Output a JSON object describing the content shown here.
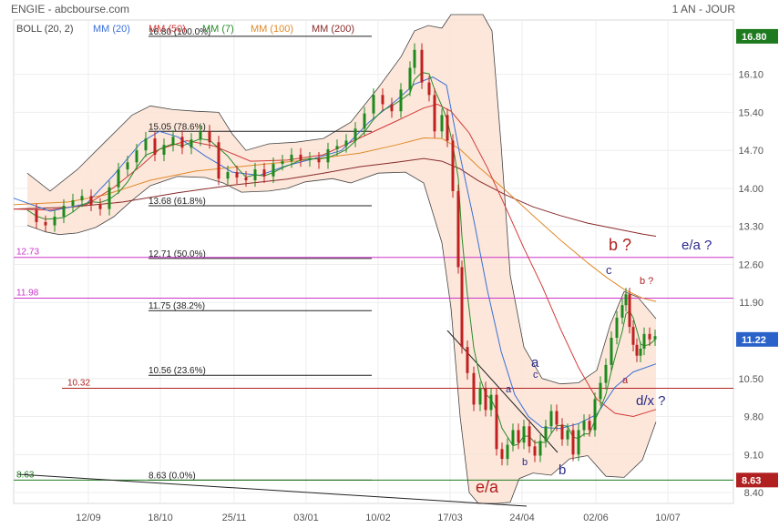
{
  "header": {
    "title": "ENGIE - abcbourse.com",
    "period": "1 AN - JOUR"
  },
  "legend": [
    {
      "label": "BOLL (20, 2)",
      "color": "#444444"
    },
    {
      "label": "MM (20)",
      "color": "#3a6fd8"
    },
    {
      "label": "MM (50)",
      "color": "#d23a3a"
    },
    {
      "label": "MM (7)",
      "color": "#2a8a2a"
    },
    {
      "label": "MM (100)",
      "color": "#e08a2a"
    },
    {
      "label": "MM (200)",
      "color": "#8a2a2a"
    }
  ],
  "chart_data": {
    "type": "line",
    "title": "ENGIE - abcbourse.com",
    "period": "1 AN - JOUR",
    "x_ticks": [
      "12/09",
      "18/10",
      "25/11",
      "03/01",
      "10/02",
      "17/03",
      "24/04",
      "02/06",
      "10/07"
    ],
    "y_ticks": [
      16.1,
      15.4,
      14.7,
      14.0,
      13.3,
      12.6,
      11.9,
      10.5,
      9.8,
      9.1,
      8.4
    ],
    "y_tick_labels": [
      "16.10",
      "15.40",
      "14.70",
      "14.00",
      "13.30",
      "12.60",
      "11.90",
      "10.50",
      "9.80",
      "9.10",
      "8.40"
    ],
    "ylim": [
      8.2,
      17.1
    ],
    "price_badges": [
      {
        "label": "16.80",
        "value": 16.8,
        "color": "#1e7a1e"
      },
      {
        "label": "11.22",
        "value": 11.22,
        "color": "#2a62c9"
      },
      {
        "label": "8.63",
        "value": 8.63,
        "color": "#b02020"
      }
    ],
    "fibonacci": [
      {
        "label": "16.80 (100.0%)",
        "value": 16.8
      },
      {
        "label": "15.05 (78.6%)",
        "value": 15.05
      },
      {
        "label": "13.68 (61.8%)",
        "value": 13.68
      },
      {
        "label": "12.71 (50.0%)",
        "value": 12.71
      },
      {
        "label": "11.75 (38.2%)",
        "value": 11.75
      },
      {
        "label": "10.56 (23.6%)",
        "value": 10.56
      },
      {
        "label": "8.63 (0.0%)",
        "value": 8.63
      }
    ],
    "horizontal_lines": [
      {
        "label": "12.73",
        "value": 12.73,
        "color": "#cc33cc"
      },
      {
        "label": "11.98",
        "value": 11.98,
        "color": "#cc33cc"
      },
      {
        "label": "10.32",
        "value": 10.32,
        "color": "#b02020"
      },
      {
        "label": "8.63",
        "value": 8.63,
        "color": "#1e7a1e"
      }
    ],
    "annotations": [
      {
        "text": "b ?",
        "color": "#b02020",
        "size": "large"
      },
      {
        "text": "e/a ?",
        "color": "#2a2a8a",
        "size": "medium"
      },
      {
        "text": "c",
        "color": "#2a2a8a",
        "size": "small"
      },
      {
        "text": "b ?",
        "color": "#b02020",
        "size": "tiny"
      },
      {
        "text": "a",
        "color": "#2a2a8a",
        "size": "medium"
      },
      {
        "text": "c",
        "color": "#2a2a8a",
        "size": "tiny"
      },
      {
        "text": "a",
        "color": "#2a2a8a",
        "size": "tiny"
      },
      {
        "text": "a",
        "color": "#b02020",
        "size": "tiny"
      },
      {
        "text": "d/x ?",
        "color": "#2a2a8a",
        "size": "medium"
      },
      {
        "text": "b",
        "color": "#2a2a8a",
        "size": "tiny"
      },
      {
        "text": "b",
        "color": "#2a2a8a",
        "size": "medium"
      },
      {
        "text": "e/a",
        "color": "#b02020",
        "size": "large"
      }
    ],
    "series": [
      {
        "name": "MM (200)",
        "color": "#8a2a2a",
        "points": [
          [
            0,
            13.62
          ],
          [
            60,
            13.65
          ],
          [
            120,
            13.75
          ],
          [
            180,
            13.92
          ],
          [
            240,
            14.06
          ],
          [
            300,
            14.17
          ],
          [
            340,
            14.28
          ],
          [
            380,
            14.4
          ],
          [
            420,
            14.48
          ],
          [
            450,
            14.55
          ],
          [
            470,
            14.5
          ],
          [
            490,
            14.36
          ],
          [
            510,
            14.14
          ],
          [
            540,
            13.88
          ],
          [
            570,
            13.66
          ],
          [
            600,
            13.5
          ],
          [
            630,
            13.36
          ],
          [
            660,
            13.26
          ],
          [
            690,
            13.16
          ],
          [
            705,
            13.12
          ]
        ]
      },
      {
        "name": "MM (100)",
        "color": "#e08a2a",
        "points": [
          [
            0,
            13.7
          ],
          [
            60,
            13.75
          ],
          [
            100,
            13.88
          ],
          [
            150,
            14.15
          ],
          [
            200,
            14.32
          ],
          [
            260,
            14.42
          ],
          [
            320,
            14.52
          ],
          [
            380,
            14.65
          ],
          [
            420,
            14.8
          ],
          [
            450,
            14.93
          ],
          [
            470,
            14.92
          ],
          [
            490,
            14.72
          ],
          [
            510,
            14.4
          ],
          [
            540,
            13.96
          ],
          [
            570,
            13.5
          ],
          [
            600,
            13.05
          ],
          [
            630,
            12.63
          ],
          [
            650,
            12.37
          ],
          [
            670,
            12.14
          ],
          [
            690,
            11.98
          ],
          [
            705,
            11.92
          ]
        ]
      },
      {
        "name": "MM (50)",
        "color": "#d23a3a",
        "points": [
          [
            0,
            13.62
          ],
          [
            40,
            13.6
          ],
          [
            80,
            13.7
          ],
          [
            110,
            14.02
          ],
          [
            140,
            14.42
          ],
          [
            160,
            14.72
          ],
          [
            190,
            14.88
          ],
          [
            220,
            14.78
          ],
          [
            260,
            14.5
          ],
          [
            300,
            14.52
          ],
          [
            340,
            14.62
          ],
          [
            380,
            14.93
          ],
          [
            420,
            15.24
          ],
          [
            450,
            15.48
          ],
          [
            465,
            15.55
          ],
          [
            480,
            15.42
          ],
          [
            500,
            15.02
          ],
          [
            520,
            14.38
          ],
          [
            540,
            13.65
          ],
          [
            560,
            12.9
          ],
          [
            580,
            12.2
          ],
          [
            600,
            11.42
          ],
          [
            620,
            10.7
          ],
          [
            640,
            10.12
          ],
          [
            660,
            9.86
          ],
          [
            680,
            9.8
          ],
          [
            705,
            9.93
          ]
        ]
      },
      {
        "name": "MM (20)",
        "color": "#3a6fd8",
        "points": [
          [
            0,
            13.82
          ],
          [
            40,
            13.58
          ],
          [
            80,
            13.72
          ],
          [
            110,
            14.25
          ],
          [
            140,
            14.85
          ],
          [
            160,
            15.05
          ],
          [
            180,
            14.95
          ],
          [
            210,
            14.6
          ],
          [
            240,
            14.3
          ],
          [
            270,
            14.24
          ],
          [
            300,
            14.42
          ],
          [
            330,
            14.55
          ],
          [
            360,
            14.7
          ],
          [
            390,
            15.22
          ],
          [
            420,
            15.62
          ],
          [
            440,
            15.92
          ],
          [
            460,
            16.05
          ],
          [
            475,
            15.9
          ],
          [
            490,
            14.6
          ],
          [
            505,
            13.42
          ],
          [
            520,
            12.12
          ],
          [
            535,
            11.0
          ],
          [
            550,
            10.2
          ],
          [
            565,
            9.8
          ],
          [
            580,
            9.6
          ],
          [
            600,
            9.58
          ],
          [
            620,
            9.67
          ],
          [
            640,
            9.84
          ],
          [
            660,
            10.34
          ],
          [
            680,
            10.62
          ],
          [
            705,
            10.77
          ]
        ]
      }
    ],
    "bollinger_upper": [
      [
        15,
        14.28
      ],
      [
        40,
        13.95
      ],
      [
        70,
        14.35
      ],
      [
        100,
        14.85
      ],
      [
        130,
        15.35
      ],
      [
        150,
        15.52
      ],
      [
        175,
        15.45
      ],
      [
        200,
        15.42
      ],
      [
        225,
        15.4
      ],
      [
        240,
        15.0
      ],
      [
        255,
        14.7
      ],
      [
        280,
        14.82
      ],
      [
        310,
        14.85
      ],
      [
        340,
        14.92
      ],
      [
        370,
        15.22
      ],
      [
        400,
        15.85
      ],
      [
        425,
        16.42
      ],
      [
        440,
        16.9
      ],
      [
        455,
        17.0
      ],
      [
        470,
        16.95
      ],
      [
        480,
        17.2
      ],
      [
        500,
        17.2
      ],
      [
        515,
        17.2
      ],
      [
        525,
        16.9
      ],
      [
        535,
        14.8
      ],
      [
        545,
        12.4
      ],
      [
        560,
        11.08
      ],
      [
        580,
        10.5
      ],
      [
        600,
        10.4
      ],
      [
        620,
        10.42
      ],
      [
        640,
        10.65
      ],
      [
        655,
        11.5
      ],
      [
        670,
        12.1
      ],
      [
        685,
        12.0
      ],
      [
        705,
        11.6
      ]
    ],
    "bollinger_lower": [
      [
        705,
        9.7
      ],
      [
        690,
        9.0
      ],
      [
        670,
        8.68
      ],
      [
        650,
        8.7
      ],
      [
        630,
        9.08
      ],
      [
        610,
        9.02
      ],
      [
        590,
        8.72
      ],
      [
        570,
        8.76
      ],
      [
        555,
        8.66
      ],
      [
        545,
        8.22
      ],
      [
        530,
        8.2
      ],
      [
        510,
        8.2
      ],
      [
        500,
        8.4
      ],
      [
        490,
        9.8
      ],
      [
        480,
        11.8
      ],
      [
        470,
        13.0
      ],
      [
        460,
        13.55
      ],
      [
        450,
        14.1
      ],
      [
        430,
        14.3
      ],
      [
        400,
        14.28
      ],
      [
        370,
        14.1
      ],
      [
        350,
        14.18
      ],
      [
        320,
        14.12
      ],
      [
        300,
        14.0
      ],
      [
        280,
        13.95
      ],
      [
        250,
        13.93
      ],
      [
        230,
        14.1
      ],
      [
        210,
        14.2
      ],
      [
        180,
        14.22
      ],
      [
        150,
        14.05
      ],
      [
        130,
        13.78
      ],
      [
        110,
        13.48
      ],
      [
        90,
        13.28
      ],
      [
        70,
        13.18
      ],
      [
        50,
        13.15
      ],
      [
        35,
        13.2
      ],
      [
        15,
        13.32
      ]
    ],
    "close": [
      [
        15,
        13.6
      ],
      [
        25,
        13.38
      ],
      [
        35,
        13.32
      ],
      [
        45,
        13.48
      ],
      [
        55,
        13.68
      ],
      [
        65,
        13.78
      ],
      [
        75,
        13.86
      ],
      [
        85,
        13.7
      ],
      [
        95,
        13.62
      ],
      [
        105,
        14.02
      ],
      [
        115,
        14.35
      ],
      [
        125,
        14.48
      ],
      [
        135,
        14.7
      ],
      [
        145,
        14.92
      ],
      [
        155,
        14.62
      ],
      [
        165,
        14.8
      ],
      [
        175,
        14.95
      ],
      [
        185,
        14.75
      ],
      [
        195,
        14.9
      ],
      [
        205,
        15.05
      ],
      [
        215,
        14.85
      ],
      [
        225,
        14.18
      ],
      [
        235,
        14.3
      ],
      [
        245,
        14.2
      ],
      [
        255,
        14.15
      ],
      [
        265,
        14.35
      ],
      [
        275,
        14.22
      ],
      [
        285,
        14.45
      ],
      [
        295,
        14.5
      ],
      [
        305,
        14.62
      ],
      [
        315,
        14.52
      ],
      [
        325,
        14.55
      ],
      [
        335,
        14.48
      ],
      [
        345,
        14.72
      ],
      [
        355,
        14.78
      ],
      [
        365,
        14.88
      ],
      [
        375,
        15.1
      ],
      [
        385,
        15.38
      ],
      [
        395,
        15.72
      ],
      [
        405,
        15.55
      ],
      [
        415,
        15.42
      ],
      [
        425,
        15.82
      ],
      [
        435,
        16.22
      ],
      [
        440,
        16.55
      ],
      [
        448,
        15.95
      ],
      [
        456,
        15.72
      ],
      [
        462,
        15.05
      ],
      [
        470,
        15.35
      ],
      [
        476,
        14.88
      ],
      [
        482,
        13.95
      ],
      [
        488,
        12.55
      ],
      [
        492,
        11.08
      ],
      [
        498,
        10.6
      ],
      [
        505,
        10.02
      ],
      [
        512,
        10.32
      ],
      [
        518,
        9.92
      ],
      [
        524,
        10.2
      ],
      [
        530,
        9.2
      ],
      [
        536,
        9.02
      ],
      [
        542,
        9.28
      ],
      [
        548,
        9.55
      ],
      [
        554,
        9.32
      ],
      [
        560,
        9.62
      ],
      [
        566,
        9.25
      ],
      [
        572,
        9.08
      ],
      [
        578,
        9.35
      ],
      [
        584,
        9.62
      ],
      [
        590,
        9.9
      ],
      [
        596,
        9.65
      ],
      [
        602,
        9.38
      ],
      [
        608,
        9.55
      ],
      [
        614,
        9.1
      ],
      [
        620,
        9.55
      ],
      [
        626,
        9.72
      ],
      [
        632,
        9.55
      ],
      [
        638,
        10.12
      ],
      [
        644,
        10.42
      ],
      [
        650,
        10.75
      ],
      [
        656,
        11.25
      ],
      [
        662,
        11.62
      ],
      [
        668,
        11.85
      ],
      [
        672,
        12.05
      ],
      [
        676,
        11.45
      ],
      [
        680,
        11.12
      ],
      [
        684,
        10.92
      ],
      [
        688,
        11.05
      ],
      [
        692,
        11.32
      ],
      [
        698,
        11.22
      ],
      [
        704,
        11.28
      ]
    ]
  }
}
